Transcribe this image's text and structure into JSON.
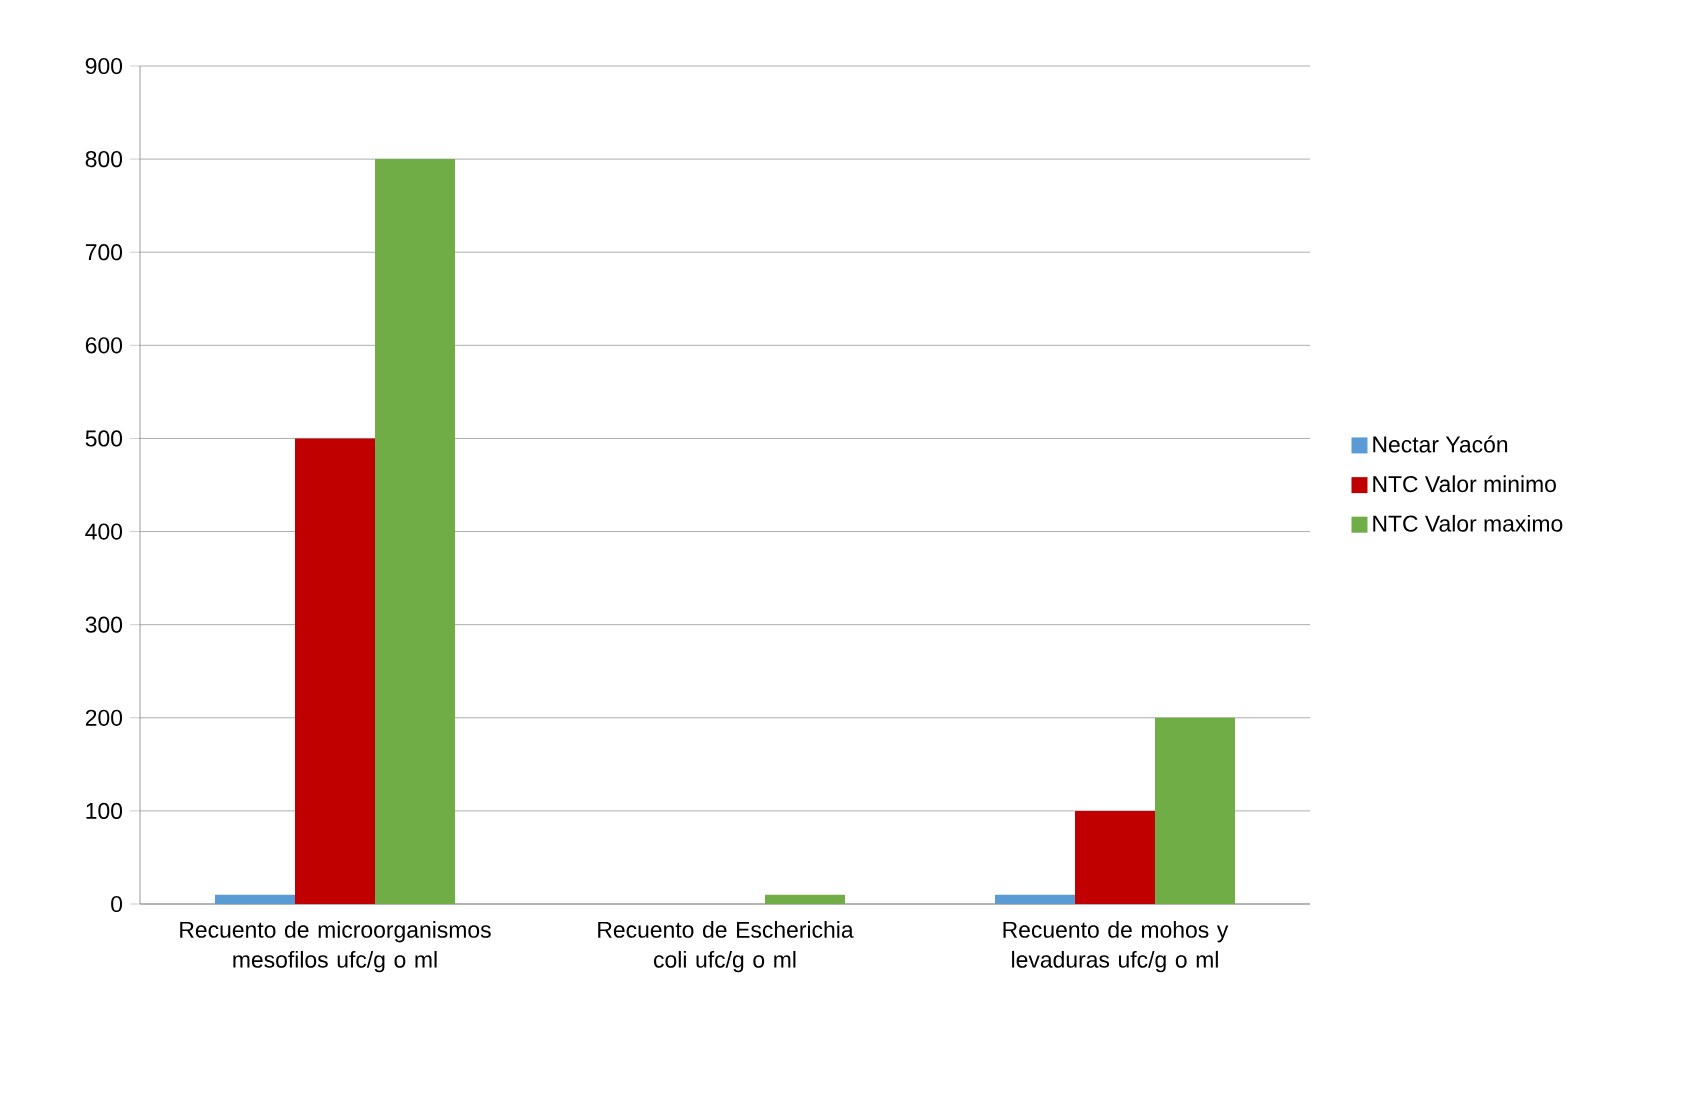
{
  "chart_data": {
    "type": "bar",
    "categories": [
      "Recuento de microorganismos mesofilos ufc/g o ml",
      "Recuento de Escherichia coli ufc/g o ml",
      "Recuento de mohos y levaduras ufc/g o ml"
    ],
    "series": [
      {
        "name": "Nectar Yacón",
        "color": "#5b9bd5",
        "values": [
          10,
          0,
          10
        ]
      },
      {
        "name": "NTC Valor minimo",
        "color": "#c00000",
        "values": [
          500,
          0,
          100
        ]
      },
      {
        "name": "NTC Valor maximo",
        "color": "#70ad47",
        "values": [
          800,
          10,
          200
        ]
      }
    ],
    "ylim": [
      0,
      900
    ],
    "yticks": [
      0,
      100,
      200,
      300,
      400,
      500,
      600,
      700,
      800,
      900
    ],
    "grid": "y",
    "legend": "right"
  }
}
